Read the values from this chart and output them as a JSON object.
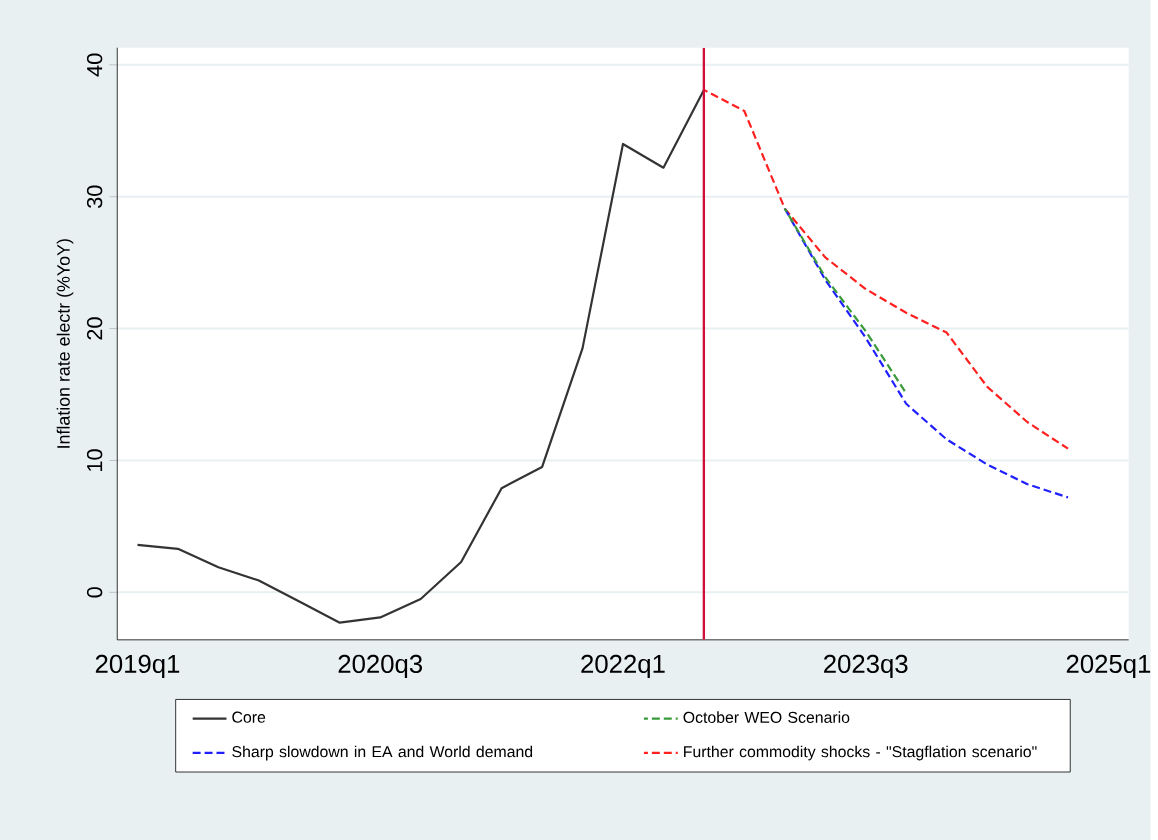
{
  "chart_data": {
    "type": "line",
    "ylabel": "Inflation rate electr (%YoY)",
    "categories": [
      "2019q1",
      null,
      null,
      null,
      null,
      null,
      "2020q3",
      null,
      null,
      null,
      null,
      null,
      "2022q1",
      null,
      null,
      null,
      null,
      null,
      "2023q3",
      null,
      null,
      null,
      null,
      null,
      "2025q1"
    ],
    "ylim": [
      -3.6,
      41.3
    ],
    "yticks": [
      0,
      10,
      20,
      30,
      40
    ],
    "grid": "y",
    "legend": "bottom",
    "series": [
      {
        "name": "Core",
        "color": "#333333",
        "line_style": "solid",
        "values": [
          3.6,
          3.3,
          1.9,
          0.9,
          -0.7,
          -2.3,
          -1.9,
          -0.5,
          2.3,
          7.9,
          9.5,
          18.5,
          34.0,
          32.2,
          38.1,
          null,
          null,
          null,
          null,
          null,
          null,
          null,
          null,
          null,
          null
        ]
      },
      {
        "name": "October WEO Scenario",
        "color": "#3a9a3a",
        "line_style": "dashed",
        "values": [
          null,
          null,
          null,
          null,
          null,
          null,
          null,
          null,
          null,
          null,
          null,
          null,
          null,
          null,
          null,
          null,
          29.1,
          23.9,
          19.8,
          15.1,
          null,
          null,
          null,
          null,
          null
        ]
      },
      {
        "name": "Sharp slowdown in EA and World demand",
        "color": "#2020ff",
        "line_style": "dashed",
        "values": [
          null,
          null,
          null,
          null,
          null,
          null,
          null,
          null,
          null,
          null,
          null,
          null,
          null,
          null,
          null,
          null,
          29.1,
          23.7,
          19.3,
          14.3,
          11.6,
          9.7,
          8.2,
          7.2,
          null
        ]
      },
      {
        "name": "Further commodity shocks - \"Stagflation scenario\"",
        "color": "#ff2020",
        "line_style": "dashed",
        "values": [
          null,
          null,
          null,
          null,
          null,
          null,
          null,
          null,
          null,
          null,
          null,
          null,
          null,
          null,
          38.1,
          36.5,
          29.1,
          25.4,
          23.0,
          21.2,
          19.7,
          15.6,
          12.9,
          10.9,
          null
        ]
      }
    ]
  }
}
